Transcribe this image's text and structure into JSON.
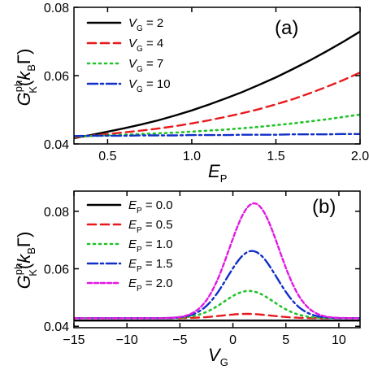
{
  "chart_data": [
    {
      "panel": "(a)",
      "type": "line",
      "xlabel": "E_P",
      "ylabel": "G^ph_K(k_B Γ)",
      "xlim": [
        0.3,
        2.0
      ],
      "ylim": [
        0.04,
        0.08
      ],
      "xticks": [
        "0.5",
        "1.0",
        "1.5",
        "2.0"
      ],
      "yticks": [
        "0.04",
        "0.06",
        "0.08"
      ],
      "legend_position": "top-left",
      "grid": false,
      "series": [
        {
          "name": "V_G = 2",
          "label_main": "V",
          "label_sub": "G",
          "label_rest": " = 2",
          "color": "#000000",
          "dash": "solid",
          "x": [
            0.3,
            0.4,
            0.5,
            0.6,
            0.7,
            0.8,
            0.9,
            1.0,
            1.1,
            1.2,
            1.3,
            1.4,
            1.5,
            1.6,
            1.7,
            1.8,
            1.9,
            2.0
          ],
          "y": [
            0.0417,
            0.0426,
            0.0436,
            0.0446,
            0.0457,
            0.0469,
            0.0483,
            0.0498,
            0.0515,
            0.0533,
            0.0552,
            0.0573,
            0.0595,
            0.0619,
            0.0644,
            0.0671,
            0.0699,
            0.0729
          ]
        },
        {
          "name": "V_G = 4",
          "label_main": "V",
          "label_sub": "G",
          "label_rest": " = 4",
          "color": "#e8191c",
          "dash": "dashed",
          "x": [
            0.3,
            0.4,
            0.5,
            0.6,
            0.7,
            0.8,
            0.9,
            1.0,
            1.1,
            1.2,
            1.3,
            1.4,
            1.5,
            1.6,
            1.7,
            1.8,
            1.9,
            2.0
          ],
          "y": [
            0.0419,
            0.0424,
            0.0429,
            0.0434,
            0.0439,
            0.0445,
            0.0452,
            0.046,
            0.0469,
            0.0479,
            0.049,
            0.0502,
            0.0516,
            0.0531,
            0.0548,
            0.0567,
            0.0587,
            0.0609
          ]
        },
        {
          "name": "V_G = 7",
          "label_main": "V",
          "label_sub": "G",
          "label_rest": " = 7",
          "color": "#22c22a",
          "dash": "dotted",
          "x": [
            0.3,
            0.4,
            0.5,
            0.6,
            0.7,
            0.8,
            0.9,
            1.0,
            1.1,
            1.2,
            1.3,
            1.4,
            1.5,
            1.6,
            1.7,
            1.8,
            1.9,
            2.0
          ],
          "y": [
            0.0421,
            0.0423,
            0.0425,
            0.0427,
            0.0429,
            0.0431,
            0.0433,
            0.0436,
            0.0439,
            0.0442,
            0.0446,
            0.045,
            0.0455,
            0.046,
            0.0466,
            0.0472,
            0.0479,
            0.0486
          ]
        },
        {
          "name": "V_G = 10",
          "label_main": "V",
          "label_sub": "G",
          "label_rest": " = 10",
          "color": "#1230c8",
          "dash": "dashdot",
          "x": [
            0.3,
            0.4,
            0.5,
            0.6,
            0.7,
            0.8,
            0.9,
            1.0,
            1.1,
            1.2,
            1.3,
            1.4,
            1.5,
            1.6,
            1.7,
            1.8,
            1.9,
            2.0
          ],
          "y": [
            0.0423,
            0.0424,
            0.0424,
            0.0424,
            0.0425,
            0.0425,
            0.0425,
            0.0426,
            0.0426,
            0.0426,
            0.0427,
            0.0427,
            0.0427,
            0.0428,
            0.0428,
            0.0428,
            0.0429,
            0.0429
          ]
        }
      ]
    },
    {
      "panel": "(b)",
      "type": "line",
      "xlabel": "V_G",
      "ylabel": "G^ph_K(k_B Γ)",
      "xlim": [
        -15,
        12
      ],
      "ylim": [
        0.0395,
        0.087
      ],
      "xticks": [
        "-15",
        "-10",
        "-5",
        "0",
        "5",
        "10"
      ],
      "yticks": [
        "0.04",
        "0.06",
        "0.08"
      ],
      "legend_position": "top-left",
      "grid": false,
      "series": [
        {
          "name": "E_P = 0.0",
          "label_main": "E",
          "label_sub": "P",
          "label_rest": " = 0.0",
          "color": "#000000",
          "dash": "solid",
          "peak": 0.042,
          "center": 0.0
        },
        {
          "name": "E_P = 0.5",
          "label_main": "E",
          "label_sub": "P",
          "label_rest": " = 0.5",
          "color": "#e8191c",
          "dash": "dashed",
          "peak": 0.0443,
          "center": 1.3
        },
        {
          "name": "E_P = 1.0",
          "label_main": "E",
          "label_sub": "P",
          "label_rest": " = 1.0",
          "color": "#22c22a",
          "dash": "dotted",
          "peak": 0.0523,
          "center": 1.5
        },
        {
          "name": "E_P = 1.5",
          "label_main": "E",
          "label_sub": "P",
          "label_rest": " = 1.5",
          "color": "#1230c8",
          "dash": "dashdot",
          "peak": 0.0662,
          "center": 1.8
        },
        {
          "name": "E_P = 2.0",
          "label_main": "E",
          "label_sub": "P",
          "label_rest": " = 2.0",
          "color": "#e317e3",
          "dash": "short-dash",
          "peak": 0.0828,
          "center": 2.0
        }
      ],
      "baseline": 0.0428
    }
  ]
}
